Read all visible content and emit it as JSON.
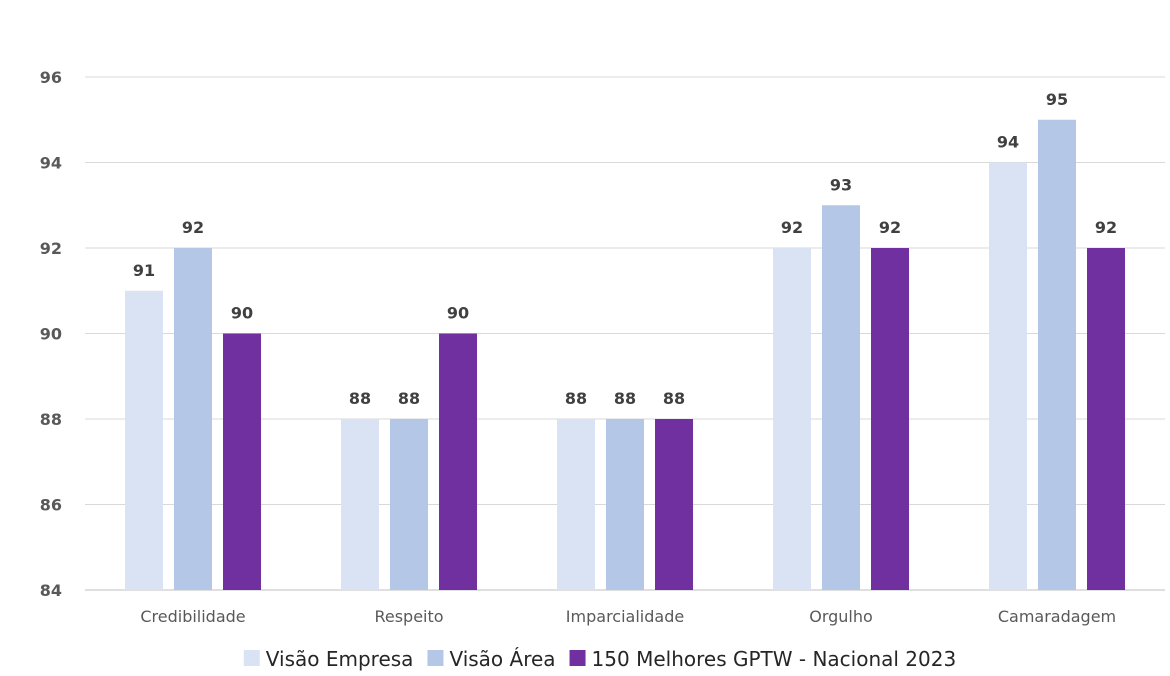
{
  "chart_data": {
    "type": "bar",
    "title": "",
    "xlabel": "",
    "ylabel": "",
    "categories": [
      "Credibilidade",
      "Respeito",
      "Imparcialidade",
      "Orgulho",
      "Camaradagem"
    ],
    "series": [
      {
        "name": "Visão Empresa",
        "color": "#dae3f3",
        "values": [
          91,
          88,
          88,
          92,
          94
        ]
      },
      {
        "name": "Visão Área",
        "color": "#b4c7e7",
        "values": [
          92,
          88,
          88,
          93,
          95
        ]
      },
      {
        "name": "150 Melhores GPTW - Nacional 2023",
        "color": "#7030a0",
        "values": [
          90,
          90,
          88,
          92,
          92
        ]
      }
    ],
    "ylim": [
      84,
      96
    ],
    "yticks": [
      84,
      86,
      88,
      90,
      92,
      94,
      96
    ],
    "grid": true,
    "legend_position": "bottom"
  }
}
